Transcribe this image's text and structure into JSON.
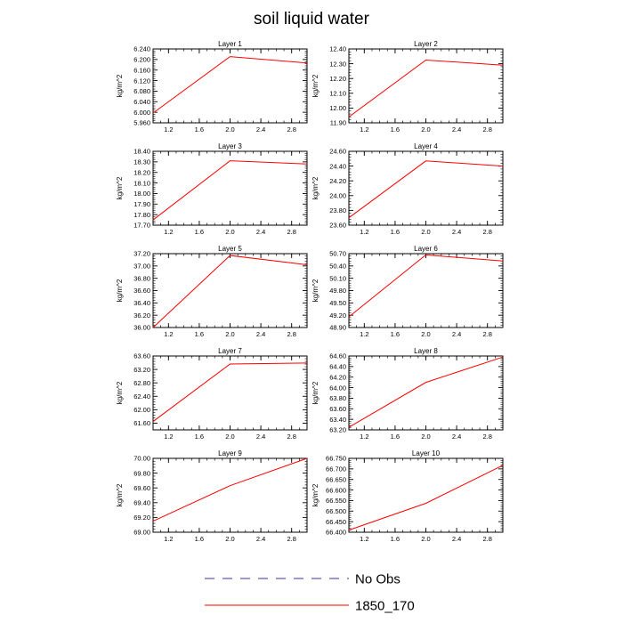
{
  "figure": {
    "title": "soil liquid water"
  },
  "legend": {
    "entries": [
      {
        "label": "No Obs",
        "color": "#3333aa",
        "dash": true
      },
      {
        "label": "1850_170",
        "color": "#ff0000",
        "dash": false
      }
    ]
  },
  "chart_data": [
    {
      "type": "line",
      "title": "Layer 1",
      "ylabel": "kg/m^2",
      "xlim": [
        1.0,
        3.0
      ],
      "ylim": [
        5.96,
        6.24
      ],
      "x": [
        1.0,
        2.0,
        3.0
      ],
      "y": [
        5.997,
        6.211,
        6.187
      ],
      "xticks": [
        "1.2",
        "1.6",
        "2.0",
        "2.4",
        "2.8"
      ],
      "xtick_values": [
        1.2,
        1.6,
        2.0,
        2.4,
        2.8
      ],
      "yticks": [
        "5.960",
        "6.000",
        "6.040",
        "6.080",
        "6.120",
        "6.160",
        "6.200",
        "6.240"
      ],
      "ytick_values": [
        5.96,
        6.0,
        6.04,
        6.08,
        6.12,
        6.16,
        6.2,
        6.24
      ],
      "series": [
        {
          "name": "1850_170",
          "color": "#ff0000"
        }
      ]
    },
    {
      "type": "line",
      "title": "Layer 2",
      "ylabel": "kg/m^2",
      "xlim": [
        1.0,
        3.0
      ],
      "ylim": [
        11.9,
        12.4
      ],
      "x": [
        1.0,
        2.0,
        3.0
      ],
      "y": [
        11.94,
        12.325,
        12.29
      ],
      "xticks": [
        "1.2",
        "1.6",
        "2.0",
        "2.4",
        "2.8"
      ],
      "xtick_values": [
        1.2,
        1.6,
        2.0,
        2.4,
        2.8
      ],
      "yticks": [
        "11.90",
        "12.00",
        "12.10",
        "12.20",
        "12.30",
        "12.40"
      ],
      "ytick_values": [
        11.9,
        12.0,
        12.1,
        12.2,
        12.3,
        12.4
      ],
      "series": [
        {
          "name": "1850_170",
          "color": "#ff0000"
        }
      ]
    },
    {
      "type": "line",
      "title": "Layer 3",
      "ylabel": "kg/m^2",
      "xlim": [
        1.0,
        3.0
      ],
      "ylim": [
        17.7,
        18.4
      ],
      "x": [
        1.0,
        2.0,
        3.0
      ],
      "y": [
        17.75,
        18.31,
        18.28
      ],
      "xticks": [
        "1.2",
        "1.6",
        "2.0",
        "2.4",
        "2.8"
      ],
      "xtick_values": [
        1.2,
        1.6,
        2.0,
        2.4,
        2.8
      ],
      "yticks": [
        "17.70",
        "17.80",
        "17.90",
        "18.00",
        "18.10",
        "18.20",
        "18.30",
        "18.40"
      ],
      "ytick_values": [
        17.7,
        17.8,
        17.9,
        18.0,
        18.1,
        18.2,
        18.3,
        18.4
      ],
      "series": [
        {
          "name": "1850_170",
          "color": "#ff0000"
        }
      ]
    },
    {
      "type": "line",
      "title": "Layer 4",
      "ylabel": "kg/m^2",
      "xlim": [
        1.0,
        3.0
      ],
      "ylim": [
        23.6,
        24.6
      ],
      "x": [
        1.0,
        2.0,
        3.0
      ],
      "y": [
        23.7,
        24.47,
        24.4
      ],
      "xticks": [
        "1.2",
        "1.6",
        "2.0",
        "2.4",
        "2.8"
      ],
      "xtick_values": [
        1.2,
        1.6,
        2.0,
        2.4,
        2.8
      ],
      "yticks": [
        "23.60",
        "23.80",
        "24.00",
        "24.20",
        "24.40",
        "24.60"
      ],
      "ytick_values": [
        23.6,
        23.8,
        24.0,
        24.2,
        24.4,
        24.6
      ],
      "series": [
        {
          "name": "1850_170",
          "color": "#ff0000"
        }
      ]
    },
    {
      "type": "line",
      "title": "Layer 5",
      "ylabel": "kg/m^2",
      "xlim": [
        1.0,
        3.0
      ],
      "ylim": [
        36.0,
        37.2
      ],
      "x": [
        1.0,
        2.0,
        3.0
      ],
      "y": [
        36.0,
        37.17,
        37.02
      ],
      "xticks": [
        "1.2",
        "1.6",
        "2.0",
        "2.4",
        "2.8"
      ],
      "xtick_values": [
        1.2,
        1.6,
        2.0,
        2.4,
        2.8
      ],
      "yticks": [
        "36.00",
        "36.20",
        "36.40",
        "36.60",
        "36.80",
        "37.00",
        "37.20"
      ],
      "ytick_values": [
        36.0,
        36.2,
        36.4,
        36.6,
        36.8,
        37.0,
        37.2
      ],
      "series": [
        {
          "name": "1850_170",
          "color": "#ff0000"
        }
      ]
    },
    {
      "type": "line",
      "title": "Layer 6",
      "ylabel": "kg/m^2",
      "xlim": [
        1.0,
        3.0
      ],
      "ylim": [
        48.9,
        50.7
      ],
      "x": [
        1.0,
        2.0,
        3.0
      ],
      "y": [
        49.16,
        50.67,
        50.52
      ],
      "xticks": [
        "1.2",
        "1.6",
        "2.0",
        "2.4",
        "2.8"
      ],
      "xtick_values": [
        1.2,
        1.6,
        2.0,
        2.4,
        2.8
      ],
      "yticks": [
        "48.90",
        "49.20",
        "49.50",
        "49.80",
        "50.10",
        "50.40",
        "50.70"
      ],
      "ytick_values": [
        48.9,
        49.2,
        49.5,
        49.8,
        50.1,
        50.4,
        50.7
      ],
      "series": [
        {
          "name": "1850_170",
          "color": "#ff0000"
        }
      ]
    },
    {
      "type": "line",
      "title": "Layer 7",
      "ylabel": "kg/m^2",
      "xlim": [
        1.0,
        3.0
      ],
      "ylim": [
        61.4,
        63.6
      ],
      "x": [
        1.0,
        2.0,
        3.0
      ],
      "y": [
        61.65,
        63.36,
        63.39
      ],
      "xticks": [
        "1.2",
        "1.6",
        "2.0",
        "2.4",
        "2.8"
      ],
      "xtick_values": [
        1.2,
        1.6,
        2.0,
        2.4,
        2.8
      ],
      "yticks": [
        "61.60",
        "62.00",
        "62.40",
        "62.80",
        "63.20",
        "63.60"
      ],
      "ytick_values": [
        61.6,
        62.0,
        62.4,
        62.8,
        63.2,
        63.6
      ],
      "series": [
        {
          "name": "1850_170",
          "color": "#ff0000"
        }
      ]
    },
    {
      "type": "line",
      "title": "Layer 8",
      "ylabel": "kg/m^2",
      "xlim": [
        1.0,
        3.0
      ],
      "ylim": [
        63.2,
        64.6
      ],
      "x": [
        1.0,
        2.0,
        3.0
      ],
      "y": [
        63.25,
        64.1,
        64.58
      ],
      "xticks": [
        "1.2",
        "1.6",
        "2.0",
        "2.4",
        "2.8"
      ],
      "xtick_values": [
        1.2,
        1.6,
        2.0,
        2.4,
        2.8
      ],
      "yticks": [
        "63.20",
        "63.40",
        "63.60",
        "63.80",
        "64.00",
        "64.20",
        "64.40",
        "64.60"
      ],
      "ytick_values": [
        63.2,
        63.4,
        63.6,
        63.8,
        64.0,
        64.2,
        64.4,
        64.6
      ],
      "series": [
        {
          "name": "1850_170",
          "color": "#ff0000"
        }
      ]
    },
    {
      "type": "line",
      "title": "Layer 9",
      "ylabel": "kg/m^2",
      "xlim": [
        1.0,
        3.0
      ],
      "ylim": [
        69.0,
        70.0
      ],
      "x": [
        1.0,
        2.0,
        3.0
      ],
      "y": [
        69.15,
        69.63,
        70.0
      ],
      "xticks": [
        "1.2",
        "1.6",
        "2.0",
        "2.4",
        "2.8"
      ],
      "xtick_values": [
        1.2,
        1.6,
        2.0,
        2.4,
        2.8
      ],
      "yticks": [
        "69.00",
        "69.20",
        "69.40",
        "69.60",
        "69.80",
        "70.00"
      ],
      "ytick_values": [
        69.0,
        69.2,
        69.4,
        69.6,
        69.8,
        70.0
      ],
      "series": [
        {
          "name": "1850_170",
          "color": "#ff0000"
        }
      ]
    },
    {
      "type": "line",
      "title": "Layer 10",
      "ylabel": "kg/m^2",
      "xlim": [
        1.0,
        3.0
      ],
      "ylim": [
        66.4,
        66.75
      ],
      "x": [
        1.0,
        2.0,
        3.0
      ],
      "y": [
        66.41,
        66.537,
        66.717
      ],
      "xticks": [
        "1.2",
        "1.6",
        "2.0",
        "2.4",
        "2.8"
      ],
      "xtick_values": [
        1.2,
        1.6,
        2.0,
        2.4,
        2.8
      ],
      "yticks": [
        "66.400",
        "66.450",
        "66.500",
        "66.550",
        "66.600",
        "66.650",
        "66.700",
        "66.750"
      ],
      "ytick_values": [
        66.4,
        66.45,
        66.5,
        66.55,
        66.6,
        66.65,
        66.7,
        66.75
      ],
      "series": [
        {
          "name": "1850_170",
          "color": "#ff0000"
        }
      ]
    }
  ]
}
